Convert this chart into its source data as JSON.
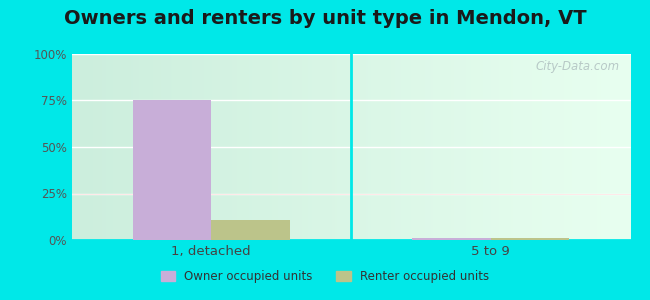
{
  "title": "Owners and renters by unit type in Mendon, VT",
  "categories": [
    "1, detached",
    "5 to 9"
  ],
  "owner_values": [
    75.0,
    1.2
  ],
  "renter_values": [
    11.0,
    1.2
  ],
  "owner_color": "#c8aed8",
  "renter_color": "#bcc48a",
  "ylim": [
    0,
    100
  ],
  "yticks": [
    0,
    25,
    50,
    75,
    100
  ],
  "ytick_labels": [
    "0%",
    "25%",
    "50%",
    "75%",
    "100%"
  ],
  "background_color": "#00e8e8",
  "title_fontsize": 14,
  "bar_width": 0.28,
  "legend_labels": [
    "Owner occupied units",
    "Renter occupied units"
  ],
  "watermark": "City-Data.com",
  "gradient_top": "#cceedd",
  "gradient_bottom": "#eefff0"
}
